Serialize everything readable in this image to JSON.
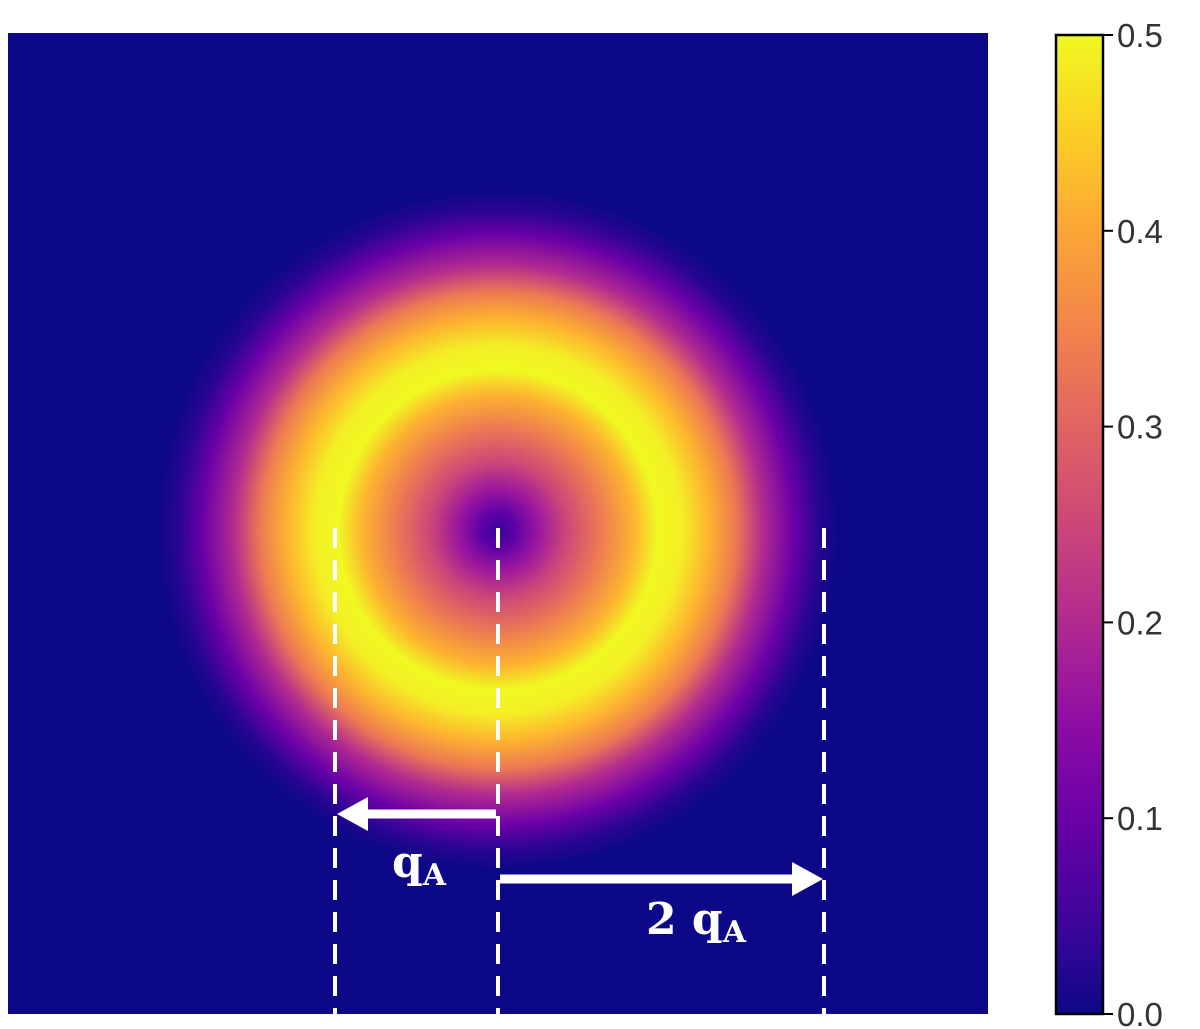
{
  "chart_data": {
    "type": "heatmap",
    "colormap": "plasma",
    "background_color": "#0d0887",
    "colorbar": {
      "range": [
        0.0,
        0.5
      ],
      "ticks": [
        "0.0",
        "0.1",
        "0.2",
        "0.3",
        "0.4",
        "0.5"
      ]
    },
    "field": {
      "description_type": "ring (annular) intensity",
      "peak_value": 0.5,
      "center_value": 0.02,
      "peak_radius_in_qA": 1.0,
      "outer_fade_radius_in_qA": 2.0
    },
    "annotations": [
      {
        "text": "q",
        "subscript": "A",
        "arrow": "leftward, from center to radius qA"
      },
      {
        "text": "2 q",
        "subscript": "A",
        "arrow": "rightward, from center to radius 2 qA"
      }
    ],
    "reference_lines": [
      "-qA",
      "0",
      "2 qA"
    ]
  }
}
